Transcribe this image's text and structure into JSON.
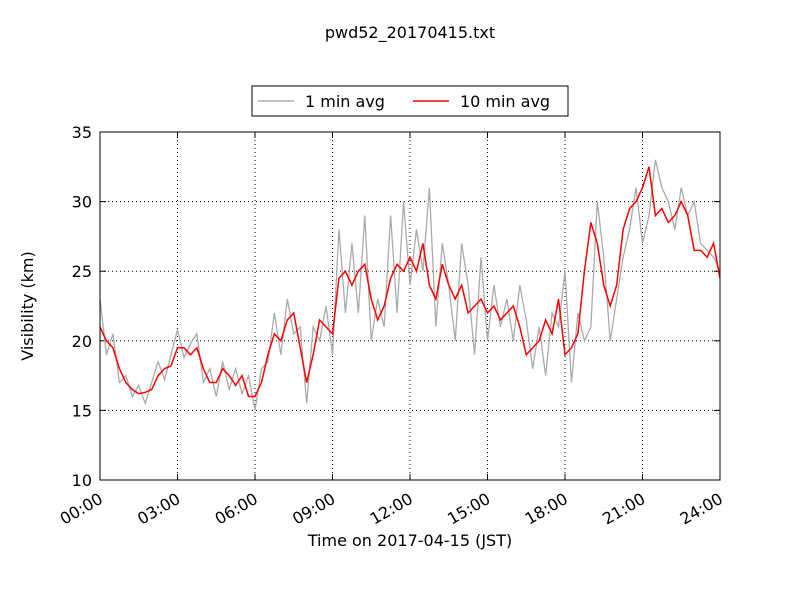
{
  "chart_data": {
    "type": "line",
    "title": "pwd52_20170415.txt",
    "xlabel": "Time on 2017-04-15 (JST)",
    "ylabel": "Visibility (km)",
    "xlim": [
      0,
      24
    ],
    "ylim": [
      10,
      35
    ],
    "xticks": [
      {
        "value": 0,
        "label": "00:00"
      },
      {
        "value": 3,
        "label": "03:00"
      },
      {
        "value": 6,
        "label": "06:00"
      },
      {
        "value": 9,
        "label": "09:00"
      },
      {
        "value": 12,
        "label": "12:00"
      },
      {
        "value": 15,
        "label": "15:00"
      },
      {
        "value": 18,
        "label": "18:00"
      },
      {
        "value": 21,
        "label": "21:00"
      },
      {
        "value": 24,
        "label": "24:00"
      }
    ],
    "yticks": [
      10,
      15,
      20,
      25,
      30,
      35
    ],
    "grid": true,
    "legend": "upper center",
    "x": [
      0,
      0.25,
      0.5,
      0.75,
      1,
      1.25,
      1.5,
      1.75,
      2,
      2.25,
      2.5,
      2.75,
      3,
      3.25,
      3.5,
      3.75,
      4,
      4.25,
      4.5,
      4.75,
      5,
      5.25,
      5.5,
      5.75,
      6,
      6.25,
      6.5,
      6.75,
      7,
      7.25,
      7.5,
      7.75,
      8,
      8.25,
      8.5,
      8.75,
      9,
      9.25,
      9.5,
      9.75,
      10,
      10.25,
      10.5,
      10.75,
      11,
      11.25,
      11.5,
      11.75,
      12,
      12.25,
      12.5,
      12.75,
      13,
      13.25,
      13.5,
      13.75,
      14,
      14.25,
      14.5,
      14.75,
      15,
      15.25,
      15.5,
      15.75,
      16,
      16.25,
      16.5,
      16.75,
      17,
      17.25,
      17.5,
      17.75,
      18,
      18.25,
      18.5,
      18.75,
      19,
      19.25,
      19.5,
      19.75,
      20,
      20.25,
      20.5,
      20.75,
      21,
      21.25,
      21.5,
      21.75,
      22,
      22.25,
      22.5,
      22.75,
      23,
      23.25,
      23.5,
      23.75,
      24
    ],
    "series": [
      {
        "name": "1 min avg",
        "color": "#aaaaaa",
        "values": [
          23,
          19,
          20.5,
          17,
          17.5,
          16,
          16.8,
          15.5,
          17,
          18.5,
          17.2,
          19,
          20.8,
          18.8,
          19.8,
          20.5,
          17,
          18,
          16,
          18.5,
          16.5,
          18,
          16.2,
          17.5,
          15,
          18,
          18.5,
          22,
          19,
          23,
          20.5,
          21,
          15.5,
          21,
          20,
          22.5,
          19,
          28,
          22,
          27,
          22,
          29,
          20,
          23,
          21,
          29,
          22,
          30,
          24,
          28,
          25,
          31,
          21,
          27,
          24,
          20,
          27,
          24,
          19,
          26,
          20,
          24,
          21,
          23,
          20,
          24,
          21.5,
          18,
          21,
          17.5,
          22,
          21,
          25,
          17,
          22,
          20,
          21,
          30,
          26,
          20,
          23,
          26,
          28,
          31,
          27,
          29,
          33,
          31,
          30,
          28,
          31,
          29,
          30,
          27,
          26.5,
          26,
          25
        ]
      },
      {
        "name": "10 min avg",
        "color": "#ff0000",
        "values": [
          21,
          20,
          19.5,
          18,
          17,
          16.5,
          16.2,
          16.3,
          16.5,
          17.5,
          18,
          18.2,
          19.5,
          19.5,
          19,
          19.5,
          18,
          17,
          17,
          18,
          17.5,
          16.8,
          17.5,
          16,
          16,
          17,
          19,
          20.5,
          20,
          21.5,
          22,
          19.5,
          17,
          19,
          21.5,
          21,
          20.5,
          24.5,
          25,
          24,
          25,
          25.5,
          23,
          21.5,
          22.5,
          24.5,
          25.5,
          25,
          26,
          25,
          27,
          24,
          23,
          25.5,
          24,
          23,
          24,
          22,
          22.5,
          23,
          22,
          22.5,
          21.5,
          22,
          22.5,
          21,
          19,
          19.5,
          20,
          21.5,
          20.5,
          23,
          19,
          19.5,
          20.5,
          25,
          28.5,
          27,
          24,
          22.5,
          24,
          28,
          29.5,
          30,
          31,
          32.5,
          29,
          29.5,
          28.5,
          29,
          30,
          29,
          26.5,
          26.5,
          26,
          27,
          24.5
        ]
      }
    ]
  }
}
